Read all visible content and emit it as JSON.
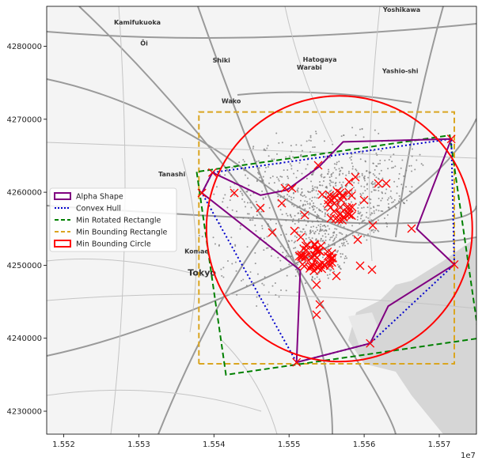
{
  "map": {
    "places": [
      {
        "name": "Yoshikawa",
        "lon": 1.5565,
        "lat": 4284700
      },
      {
        "name": "Kamifukuoka",
        "lon": 1.55298,
        "lat": 4283000
      },
      {
        "name": "Ōi",
        "lon": 1.55307,
        "lat": 4280100
      },
      {
        "name": "Shiki",
        "lon": 1.5541,
        "lat": 4277800
      },
      {
        "name": "Hatogaya",
        "lon": 1.55541,
        "lat": 4277900
      },
      {
        "name": "Warabi",
        "lon": 1.55527,
        "lat": 4276800
      },
      {
        "name": "Yashio-shi",
        "lon": 1.55648,
        "lat": 4276300
      },
      {
        "name": "Wako",
        "lon": 1.55423,
        "lat": 4272200
      },
      {
        "name": "Tanashi",
        "lon": 1.55344,
        "lat": 4262200
      },
      {
        "name": "Komae",
        "lon": 1.55377,
        "lat": 4251600
      },
      {
        "name": "Tokyo",
        "lon": 1.55384,
        "lat": 4248600,
        "big": true
      }
    ]
  },
  "chart_data": {
    "type": "scatter",
    "x_axis": {
      "range": [
        1.5517,
        1.5576
      ],
      "ticks": [
        1.552,
        1.553,
        1.554,
        1.555,
        1.556,
        1.557
      ],
      "tick_labels": [
        "1.552",
        "1.553",
        "1.554",
        "1.555",
        "1.556",
        "1.557"
      ],
      "offset_label": "1e7"
    },
    "y_axis": {
      "range": [
        4226800,
        4285500
      ],
      "ticks": [
        4230000,
        4240000,
        4250000,
        4260000,
        4270000,
        4280000
      ],
      "tick_labels": [
        "4230000",
        "4240000",
        "4250000",
        "4260000",
        "4270000",
        "4280000"
      ]
    },
    "legend": {
      "position": "center-left",
      "entries": [
        {
          "label": "Alpha Shape",
          "color": "#800080",
          "style": "patch"
        },
        {
          "label": "Convex Hull",
          "color": "#0000cc",
          "style": "dotted"
        },
        {
          "label": "Min Rotated Rectangle",
          "color": "#008000",
          "style": "dashed"
        },
        {
          "label": "Min Bounding Rectangle",
          "color": "#daa520",
          "style": "dashed"
        },
        {
          "label": "Min Bounding Circle",
          "color": "#ff0000",
          "style": "patch"
        }
      ]
    },
    "alpha_shape": [
      [
        1.55384,
        4259900
      ],
      [
        1.55398,
        4262700
      ],
      [
        1.55462,
        4259600
      ],
      [
        1.55497,
        4260300
      ],
      [
        1.5554,
        4263500
      ],
      [
        1.55572,
        4266900
      ],
      [
        1.55716,
        4267300
      ],
      [
        1.5567,
        4255000
      ],
      [
        1.5572,
        4250100
      ],
      [
        1.55632,
        4244400
      ],
      [
        1.55608,
        4239300
      ],
      [
        1.5551,
        4236700
      ],
      [
        1.55515,
        4249300
      ],
      [
        1.55384,
        4259900
      ]
    ],
    "convex_hull": [
      [
        1.55384,
        4259900
      ],
      [
        1.55398,
        4262700
      ],
      [
        1.55716,
        4267300
      ],
      [
        1.5572,
        4250100
      ],
      [
        1.55608,
        4239300
      ],
      [
        1.5551,
        4236700
      ],
      [
        1.55384,
        4259900
      ]
    ],
    "min_rotated_rectangle": [
      [
        1.55377,
        4262800
      ],
      [
        1.55416,
        4235000
      ],
      [
        1.55753,
        4240000
      ],
      [
        1.55714,
        4267800
      ],
      [
        1.55377,
        4262800
      ]
    ],
    "min_bounding_rectangle": [
      [
        1.5538,
        4236500
      ],
      [
        1.5572,
        4236500
      ],
      [
        1.5572,
        4271000
      ],
      [
        1.5538,
        4271000
      ],
      [
        1.5538,
        4236500
      ]
    ],
    "min_bounding_circle": {
      "center": [
        1.55567,
        4255000
      ],
      "radius_x": 0.00177
    }
  }
}
